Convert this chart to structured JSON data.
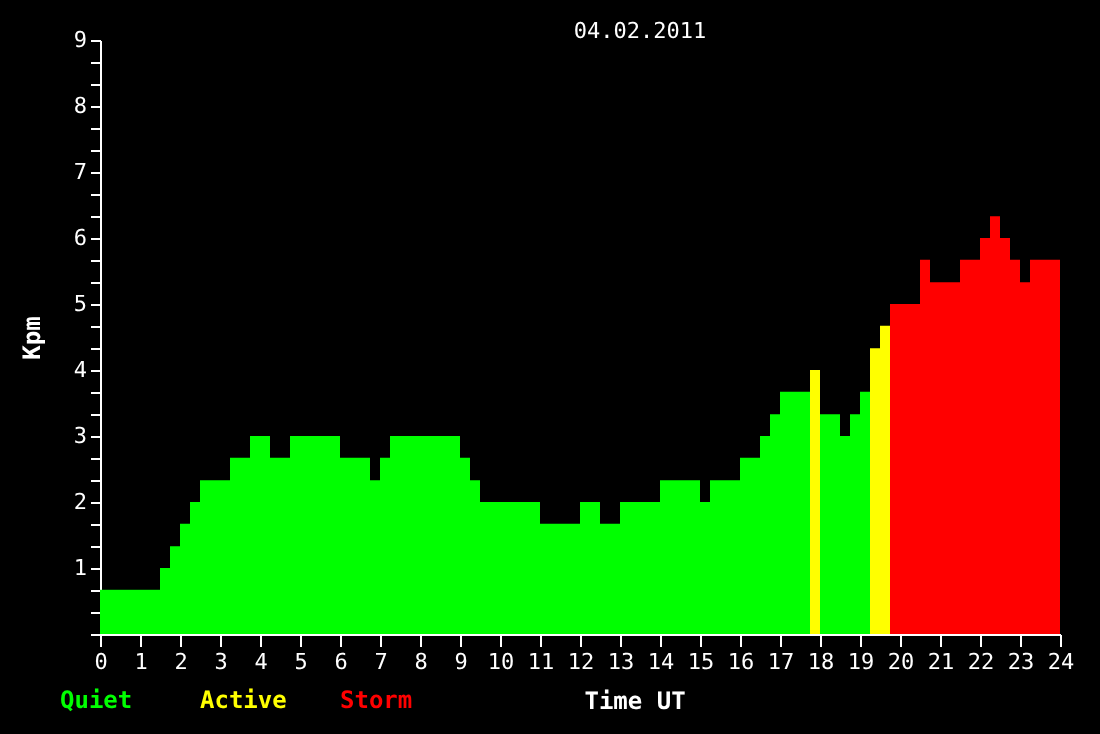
{
  "chart_data": {
    "type": "bar",
    "title": "04.02.2011",
    "xlabel": "Time UT",
    "ylabel": "Kpm",
    "x": [
      0.125,
      0.375,
      0.625,
      0.875,
      1.125,
      1.375,
      1.625,
      1.875,
      2.125,
      2.375,
      2.625,
      2.875,
      3.125,
      3.375,
      3.625,
      3.875,
      4.125,
      4.375,
      4.625,
      4.875,
      5.125,
      5.375,
      5.625,
      5.875,
      6.125,
      6.375,
      6.625,
      6.875,
      7.125,
      7.375,
      7.625,
      7.875,
      8.125,
      8.375,
      8.625,
      8.875,
      9.125,
      9.375,
      9.625,
      9.875,
      10.125,
      10.375,
      10.625,
      10.875,
      11.125,
      11.375,
      11.625,
      11.875,
      12.125,
      12.375,
      12.625,
      12.875,
      13.125,
      13.375,
      13.625,
      13.875,
      14.125,
      14.375,
      14.625,
      14.875,
      15.125,
      15.375,
      15.625,
      15.875,
      16.125,
      16.375,
      16.625,
      16.875,
      17.125,
      17.375,
      17.625,
      17.875,
      18.125,
      18.375,
      18.625,
      18.875,
      19.125,
      19.375,
      19.625,
      19.875,
      20.125,
      20.375,
      20.625,
      20.875,
      21.125,
      21.375,
      21.625,
      21.875,
      22.125,
      22.375,
      22.625,
      22.875,
      23.125,
      23.375,
      23.625,
      23.875
    ],
    "series": [
      {
        "name": "Quiet",
        "color": "#00ff00",
        "values": [
          0.67,
          0.67,
          0.67,
          0.67,
          0.67,
          0.67,
          1.0,
          1.33,
          1.67,
          2.0,
          2.33,
          2.33,
          2.33,
          2.67,
          2.67,
          3.0,
          3.0,
          2.67,
          2.67,
          3.0,
          3.0,
          3.0,
          3.0,
          3.0,
          2.67,
          2.67,
          2.67,
          2.33,
          2.67,
          3.0,
          3.0,
          3.0,
          3.0,
          3.0,
          3.0,
          3.0,
          2.67,
          2.33,
          2.0,
          2.0,
          2.0,
          2.0,
          2.0,
          2.0,
          1.67,
          1.67,
          1.67,
          1.67,
          2.0,
          2.0,
          1.67,
          1.67,
          2.0,
          2.0,
          2.0,
          2.0,
          2.33,
          2.33,
          2.33,
          2.33,
          2.0,
          2.33,
          2.33,
          2.33,
          2.67,
          2.67,
          3.0,
          3.33,
          3.67,
          3.67,
          3.67,
          null,
          3.33,
          3.33,
          3.0,
          3.33,
          3.67,
          null,
          null,
          null,
          null,
          null,
          null,
          null,
          null,
          null,
          null,
          null,
          null,
          null,
          null,
          null,
          null,
          null,
          null,
          null
        ]
      },
      {
        "name": "Active",
        "color": "#ffff00",
        "values": [
          null,
          null,
          null,
          null,
          null,
          null,
          null,
          null,
          null,
          null,
          null,
          null,
          null,
          null,
          null,
          null,
          null,
          null,
          null,
          null,
          null,
          null,
          null,
          null,
          null,
          null,
          null,
          null,
          null,
          null,
          null,
          null,
          null,
          null,
          null,
          null,
          null,
          null,
          null,
          null,
          null,
          null,
          null,
          null,
          null,
          null,
          null,
          null,
          null,
          null,
          null,
          null,
          null,
          null,
          null,
          null,
          null,
          null,
          null,
          null,
          null,
          null,
          null,
          null,
          null,
          null,
          null,
          null,
          null,
          null,
          null,
          4.0,
          null,
          null,
          null,
          null,
          null,
          4.33,
          4.67,
          null,
          null,
          null,
          null,
          null,
          null,
          null,
          null,
          null,
          null,
          null,
          null,
          null,
          null,
          null,
          null,
          null
        ]
      },
      {
        "name": "Storm",
        "color": "#ff0000",
        "values": [
          null,
          null,
          null,
          null,
          null,
          null,
          null,
          null,
          null,
          null,
          null,
          null,
          null,
          null,
          null,
          null,
          null,
          null,
          null,
          null,
          null,
          null,
          null,
          null,
          null,
          null,
          null,
          null,
          null,
          null,
          null,
          null,
          null,
          null,
          null,
          null,
          null,
          null,
          null,
          null,
          null,
          null,
          null,
          null,
          null,
          null,
          null,
          null,
          null,
          null,
          null,
          null,
          null,
          null,
          null,
          null,
          null,
          null,
          null,
          null,
          null,
          null,
          null,
          null,
          null,
          null,
          null,
          null,
          null,
          null,
          null,
          null,
          null,
          null,
          null,
          null,
          null,
          null,
          null,
          5.0,
          5.0,
          5.0,
          5.67,
          5.33,
          5.33,
          5.33,
          5.67,
          5.67,
          6.0,
          6.33,
          6.0,
          5.67,
          5.33,
          5.67,
          5.67,
          5.67
        ]
      }
    ],
    "xlim": [
      0,
      24
    ],
    "xticks": [
      0,
      1,
      2,
      3,
      4,
      5,
      6,
      7,
      8,
      9,
      10,
      11,
      12,
      13,
      14,
      15,
      16,
      17,
      18,
      19,
      20,
      21,
      22,
      23,
      24
    ],
    "ylim": [
      0,
      9
    ],
    "yticks": [
      {
        "value": 0,
        "label": null
      },
      {
        "value": 0.33,
        "label": null
      },
      {
        "value": 0.67,
        "label": null
      },
      1,
      {
        "value": 1.33,
        "label": null
      },
      {
        "value": 1.67,
        "label": null
      },
      2,
      {
        "value": 2.33,
        "label": null
      },
      {
        "value": 2.67,
        "label": null
      },
      3,
      {
        "value": 3.33,
        "label": null
      },
      {
        "value": 3.67,
        "label": null
      },
      4,
      {
        "value": 4.33,
        "label": null
      },
      {
        "value": 4.67,
        "label": null
      },
      5,
      {
        "value": 5.33,
        "label": null
      },
      {
        "value": 5.67,
        "label": null
      },
      6,
      {
        "value": 6.33,
        "label": null
      },
      {
        "value": 6.67,
        "label": null
      },
      7,
      {
        "value": 7.33,
        "label": null
      },
      {
        "value": 7.67,
        "label": null
      },
      8,
      {
        "value": 8.33,
        "label": null
      },
      {
        "value": 8.67,
        "label": null
      },
      9
    ],
    "grid": false,
    "legend": "bottom"
  }
}
